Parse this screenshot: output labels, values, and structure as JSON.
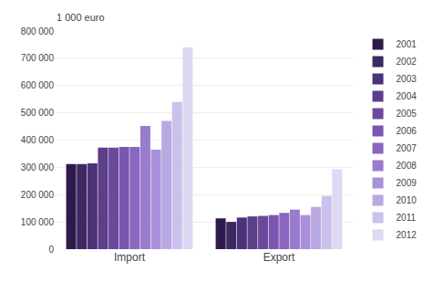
{
  "chart_data": {
    "type": "bar",
    "ylabel": "1 000 euro",
    "categories": [
      "Import",
      "Export"
    ],
    "series": [
      {
        "name": "2001",
        "color": "#2e1a4a",
        "values": [
          312000,
          113000
        ]
      },
      {
        "name": "2002",
        "color": "#3d2860",
        "values": [
          312000,
          100000
        ]
      },
      {
        "name": "2003",
        "color": "#4c3278",
        "values": [
          315000,
          116000
        ]
      },
      {
        "name": "2004",
        "color": "#5c3e8a",
        "values": [
          372000,
          120000
        ]
      },
      {
        "name": "2005",
        "color": "#6b4a9e",
        "values": [
          372000,
          122000
        ]
      },
      {
        "name": "2006",
        "color": "#7a56b0",
        "values": [
          375000,
          125000
        ]
      },
      {
        "name": "2007",
        "color": "#8a66be",
        "values": [
          375000,
          133000
        ]
      },
      {
        "name": "2008",
        "color": "#9a7ccc",
        "values": [
          452000,
          145000
        ]
      },
      {
        "name": "2009",
        "color": "#aa90d8",
        "values": [
          365000,
          125000
        ]
      },
      {
        "name": "2010",
        "color": "#baa8e2",
        "values": [
          470000,
          155000
        ]
      },
      {
        "name": "2011",
        "color": "#ccc0ec",
        "values": [
          540000,
          195000
        ]
      },
      {
        "name": "2012",
        "color": "#ddd8f4",
        "values": [
          740000,
          293000
        ]
      }
    ],
    "ylim": [
      0,
      800000
    ],
    "yticks": [
      0,
      {
        "value": 100000,
        "label": "100 000"
      },
      {
        "value": 200000,
        "label": "200 000"
      },
      {
        "value": 300000,
        "label": "300 000"
      },
      {
        "value": 400000,
        "label": "400 000"
      },
      {
        "value": 500000,
        "label": "500 000"
      },
      {
        "value": 600000,
        "label": "600 000"
      },
      {
        "value": 700000,
        "label": "700 000"
      },
      {
        "value": 800000,
        "label": "800 000"
      }
    ],
    "grid": true,
    "legend": "upper right"
  }
}
